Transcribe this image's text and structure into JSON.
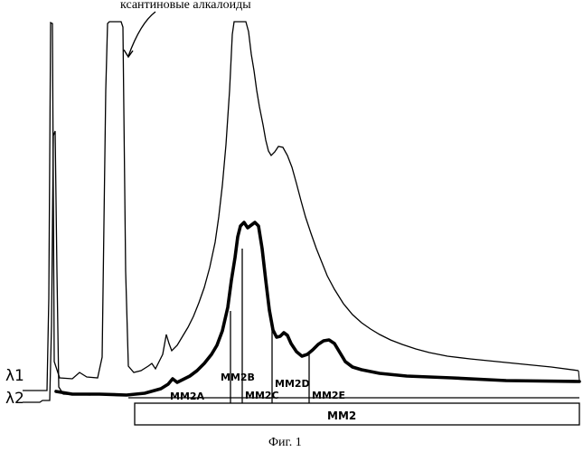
{
  "chart_data": {
    "type": "line",
    "annotation": "ксантиновые алкалоиды",
    "caption": "Фиг. 1",
    "series": [
      {
        "name": "λ1"
      },
      {
        "name": "λ2"
      }
    ],
    "bands": [
      {
        "label": "MM2A"
      },
      {
        "label": "MM2B"
      },
      {
        "label": "MM2C"
      },
      {
        "label": "MM2D"
      },
      {
        "label": "MM2E"
      }
    ],
    "region_label": "MM2"
  }
}
